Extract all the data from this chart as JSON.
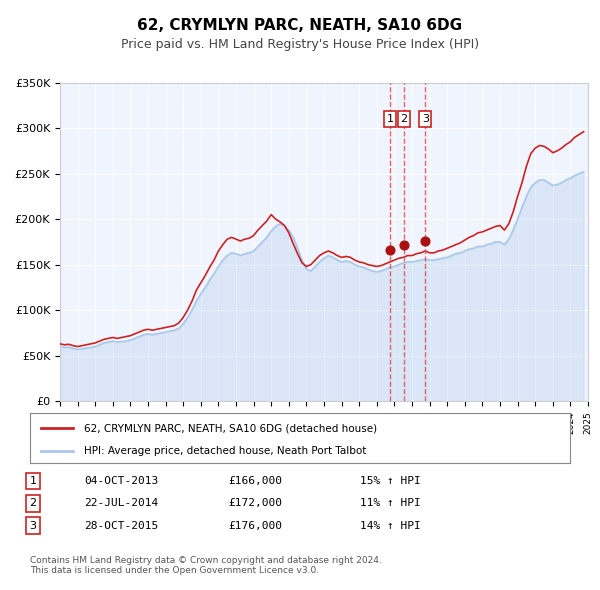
{
  "title": "62, CRYMLYN PARC, NEATH, SA10 6DG",
  "subtitle": "Price paid vs. HM Land Registry's House Price Index (HPI)",
  "hpi_label": "HPI: Average price, detached house, Neath Port Talbot",
  "price_label": "62, CRYMLYN PARC, NEATH, SA10 6DG (detached house)",
  "price_color": "#cc2222",
  "hpi_color": "#aac8e8",
  "background_color": "#f0f4ff",
  "plot_bg_color": "#f0f4ff",
  "ylim": [
    0,
    350000
  ],
  "yticks": [
    0,
    50000,
    100000,
    150000,
    200000,
    250000,
    300000,
    350000
  ],
  "ytick_labels": [
    "£0",
    "£50K",
    "£100K",
    "£150K",
    "£200K",
    "£250K",
    "£300K",
    "£350K"
  ],
  "sale_dates": [
    "2013-10-04",
    "2014-07-22",
    "2015-10-28"
  ],
  "sale_prices": [
    166000,
    172000,
    176000
  ],
  "sale_labels": [
    "1",
    "2",
    "3"
  ],
  "sale_hpi_pct": [
    "15%",
    "11%",
    "14%"
  ],
  "sale_date_strs": [
    "04-OCT-2013",
    "22-JUL-2014",
    "28-OCT-2015"
  ],
  "sale_price_strs": [
    "£166,000",
    "£172,000",
    "£176,000"
  ],
  "footer_line1": "Contains HM Land Registry data © Crown copyright and database right 2024.",
  "footer_line2": "This data is licensed under the Open Government Licence v3.0.",
  "vline_color": "#dd4444",
  "marker_color": "#aa1111",
  "hpi_data": {
    "years": [
      1995.0,
      1995.25,
      1995.5,
      1995.75,
      1996.0,
      1996.25,
      1996.5,
      1996.75,
      1997.0,
      1997.25,
      1997.5,
      1997.75,
      1998.0,
      1998.25,
      1998.5,
      1998.75,
      1999.0,
      1999.25,
      1999.5,
      1999.75,
      2000.0,
      2000.25,
      2000.5,
      2000.75,
      2001.0,
      2001.25,
      2001.5,
      2001.75,
      2002.0,
      2002.25,
      2002.5,
      2002.75,
      2003.0,
      2003.25,
      2003.5,
      2003.75,
      2004.0,
      2004.25,
      2004.5,
      2004.75,
      2005.0,
      2005.25,
      2005.5,
      2005.75,
      2006.0,
      2006.25,
      2006.5,
      2006.75,
      2007.0,
      2007.25,
      2007.5,
      2007.75,
      2008.0,
      2008.25,
      2008.5,
      2008.75,
      2009.0,
      2009.25,
      2009.5,
      2009.75,
      2010.0,
      2010.25,
      2010.5,
      2010.75,
      2011.0,
      2011.25,
      2011.5,
      2011.75,
      2012.0,
      2012.25,
      2012.5,
      2012.75,
      2013.0,
      2013.25,
      2013.5,
      2013.75,
      2014.0,
      2014.25,
      2014.5,
      2014.75,
      2015.0,
      2015.25,
      2015.5,
      2015.75,
      2016.0,
      2016.25,
      2016.5,
      2016.75,
      2017.0,
      2017.25,
      2017.5,
      2017.75,
      2018.0,
      2018.25,
      2018.5,
      2018.75,
      2019.0,
      2019.25,
      2019.5,
      2019.75,
      2020.0,
      2020.25,
      2020.5,
      2020.75,
      2021.0,
      2021.25,
      2021.5,
      2021.75,
      2022.0,
      2022.25,
      2022.5,
      2022.75,
      2023.0,
      2023.25,
      2023.5,
      2023.75,
      2024.0,
      2024.25,
      2024.5,
      2024.75
    ],
    "values": [
      60000,
      59000,
      59500,
      58000,
      57000,
      57500,
      58500,
      59000,
      60000,
      62000,
      64000,
      65000,
      66000,
      65000,
      65500,
      66000,
      67000,
      69000,
      71000,
      73000,
      74000,
      73000,
      74000,
      75000,
      76000,
      77000,
      78000,
      80000,
      85000,
      92000,
      100000,
      110000,
      118000,
      125000,
      133000,
      140000,
      148000,
      155000,
      160000,
      163000,
      162000,
      160000,
      162000,
      163000,
      165000,
      170000,
      175000,
      180000,
      187000,
      192000,
      195000,
      193000,
      188000,
      180000,
      168000,
      155000,
      145000,
      143000,
      148000,
      153000,
      157000,
      160000,
      158000,
      155000,
      153000,
      154000,
      153000,
      150000,
      148000,
      147000,
      145000,
      143000,
      142000,
      143000,
      145000,
      147000,
      148000,
      150000,
      152000,
      153000,
      153000,
      154000,
      155000,
      156000,
      155000,
      155000,
      156000,
      157000,
      158000,
      160000,
      162000,
      163000,
      165000,
      167000,
      168000,
      170000,
      170000,
      172000,
      173000,
      175000,
      175000,
      172000,
      178000,
      188000,
      200000,
      213000,
      225000,
      235000,
      240000,
      243000,
      243000,
      240000,
      237000,
      238000,
      240000,
      243000,
      245000,
      248000,
      250000,
      252000
    ]
  },
  "price_data": {
    "years": [
      1995.0,
      1995.25,
      1995.5,
      1995.75,
      1996.0,
      1996.25,
      1996.5,
      1996.75,
      1997.0,
      1997.25,
      1997.5,
      1997.75,
      1998.0,
      1998.25,
      1998.5,
      1998.75,
      1999.0,
      1999.25,
      1999.5,
      1999.75,
      2000.0,
      2000.25,
      2000.5,
      2000.75,
      2001.0,
      2001.25,
      2001.5,
      2001.75,
      2002.0,
      2002.25,
      2002.5,
      2002.75,
      2003.0,
      2003.25,
      2003.5,
      2003.75,
      2004.0,
      2004.25,
      2004.5,
      2004.75,
      2005.0,
      2005.25,
      2005.5,
      2005.75,
      2006.0,
      2006.25,
      2006.5,
      2006.75,
      2007.0,
      2007.25,
      2007.5,
      2007.75,
      2008.0,
      2008.25,
      2008.5,
      2008.75,
      2009.0,
      2009.25,
      2009.5,
      2009.75,
      2010.0,
      2010.25,
      2010.5,
      2010.75,
      2011.0,
      2011.25,
      2011.5,
      2011.75,
      2012.0,
      2012.25,
      2012.5,
      2012.75,
      2013.0,
      2013.25,
      2013.5,
      2013.75,
      2014.0,
      2014.25,
      2014.5,
      2014.75,
      2015.0,
      2015.25,
      2015.5,
      2015.75,
      2016.0,
      2016.25,
      2016.5,
      2016.75,
      2017.0,
      2017.25,
      2017.5,
      2017.75,
      2018.0,
      2018.25,
      2018.5,
      2018.75,
      2019.0,
      2019.25,
      2019.5,
      2019.75,
      2020.0,
      2020.25,
      2020.5,
      2020.75,
      2021.0,
      2021.25,
      2021.5,
      2021.75,
      2022.0,
      2022.25,
      2022.5,
      2022.75,
      2023.0,
      2023.25,
      2023.5,
      2023.75,
      2024.0,
      2024.25,
      2024.5,
      2024.75
    ],
    "values": [
      63000,
      62000,
      62500,
      61000,
      60000,
      61000,
      62000,
      63000,
      64000,
      66000,
      68000,
      69000,
      70000,
      69000,
      70000,
      71000,
      72000,
      74000,
      76000,
      78000,
      79000,
      78000,
      79000,
      80000,
      81000,
      82000,
      83000,
      86000,
      92000,
      100000,
      110000,
      122000,
      130000,
      138000,
      147000,
      155000,
      165000,
      172000,
      178000,
      180000,
      178000,
      176000,
      178000,
      179000,
      182000,
      188000,
      193000,
      198000,
      205000,
      200000,
      197000,
      193000,
      185000,
      173000,
      162000,
      152000,
      148000,
      150000,
      155000,
      160000,
      163000,
      165000,
      163000,
      160000,
      158000,
      159000,
      158000,
      155000,
      153000,
      152000,
      150000,
      149000,
      148000,
      149000,
      151000,
      153000,
      155000,
      157000,
      158000,
      160000,
      160000,
      162000,
      163000,
      165000,
      163000,
      163000,
      165000,
      166000,
      168000,
      170000,
      172000,
      174000,
      177000,
      180000,
      182000,
      185000,
      186000,
      188000,
      190000,
      192000,
      193000,
      188000,
      195000,
      208000,
      225000,
      240000,
      258000,
      272000,
      278000,
      281000,
      280000,
      277000,
      273000,
      275000,
      278000,
      282000,
      285000,
      290000,
      293000,
      296000
    ]
  }
}
